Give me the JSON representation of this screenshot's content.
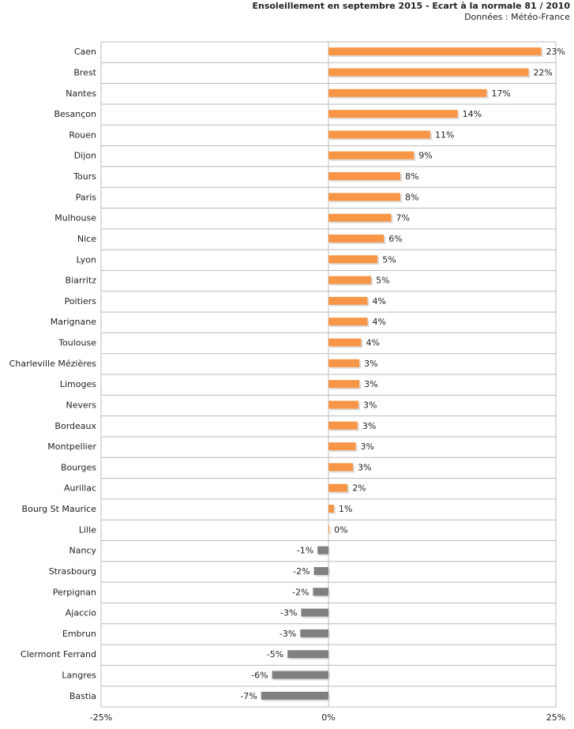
{
  "chart_data": {
    "type": "hbar",
    "title": "Ensoleillement en septembre 2015 - Ecart à la normale 81 / 2010",
    "subtitle": "Données : Météo-France",
    "categories": [
      "Caen",
      "Brest",
      "Nantes",
      "Besançon",
      "Rouen",
      "Dijon",
      "Tours",
      "Paris",
      "Mulhouse",
      "Nice",
      "Lyon",
      "Biarritz",
      "Poitiers",
      "Marignane",
      "Toulouse",
      "Charleville Mézières",
      "Limoges",
      "Nevers",
      "Bordeaux",
      "Montpellier",
      "Bourges",
      "Aurillac",
      "Bourg St Maurice",
      "Lille",
      "Nancy",
      "Strasbourg",
      "Perpignan",
      "Ajaccio",
      "Embrun",
      "Clermont Ferrand",
      "Langres",
      "Bastia"
    ],
    "values": [
      23.4,
      22.0,
      17.4,
      14.2,
      11.2,
      9.4,
      7.9,
      7.9,
      6.9,
      6.1,
      5.4,
      4.7,
      4.3,
      4.3,
      3.6,
      3.4,
      3.4,
      3.3,
      3.2,
      3.0,
      2.7,
      2.1,
      0.6,
      0.1,
      -1.2,
      -1.6,
      -1.7,
      -3.0,
      -3.1,
      -4.5,
      -6.2,
      -7.4
    ],
    "value_labels": [
      "23%",
      "22%",
      "17%",
      "14%",
      "11%",
      "9%",
      "8%",
      "8%",
      "7%",
      "6%",
      "5%",
      "5%",
      "4%",
      "4%",
      "4%",
      "3%",
      "3%",
      "3%",
      "3%",
      "3%",
      "3%",
      "2%",
      "1%",
      "0%",
      "-1%",
      "-2%",
      "-2%",
      "-3%",
      "-3%",
      "-5%",
      "-6%",
      "-7%"
    ],
    "positive_color": "#f79646",
    "negative_color": "#808080",
    "xlim": [
      -25,
      25
    ],
    "xticks": [
      {
        "value": -25,
        "label": "-25%"
      },
      {
        "value": 0,
        "label": "0%"
      },
      {
        "value": 25,
        "label": "25%"
      }
    ],
    "grid": true
  }
}
